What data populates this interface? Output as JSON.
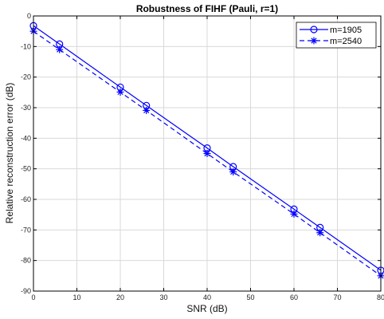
{
  "chart_data": {
    "type": "line",
    "title": "Robustness of FIHF (Pauli, r=1)",
    "xlabel": "SNR (dB)",
    "ylabel": "Relative reconstruction error (dB)",
    "xlim": [
      0,
      80
    ],
    "ylim": [
      -90,
      0
    ],
    "xticks": [
      "0",
      "10",
      "20",
      "30",
      "40",
      "50",
      "60",
      "70",
      "80"
    ],
    "yticks": [
      "0",
      "-10",
      "-20",
      "-30",
      "-40",
      "-50",
      "-60",
      "-70",
      "-80",
      "-90"
    ],
    "grid": true,
    "legend_position": "top-right",
    "x": [
      0,
      6,
      20,
      26,
      40,
      46,
      60,
      66,
      80
    ],
    "series": [
      {
        "name": "m=1905",
        "values": [
          -3.2,
          -9.2,
          -23.3,
          -29.3,
          -43.2,
          -49.3,
          -63.2,
          -69.2,
          -83.2
        ],
        "color": "#0000ff",
        "line_style": "solid",
        "marker": "circle"
      },
      {
        "name": "m=2540",
        "values": [
          -5.0,
          -11.0,
          -24.9,
          -30.9,
          -45.0,
          -51.0,
          -64.8,
          -70.9,
          -85.0
        ],
        "color": "#0000ff",
        "line_style": "dashed",
        "marker": "asterisk"
      }
    ]
  }
}
